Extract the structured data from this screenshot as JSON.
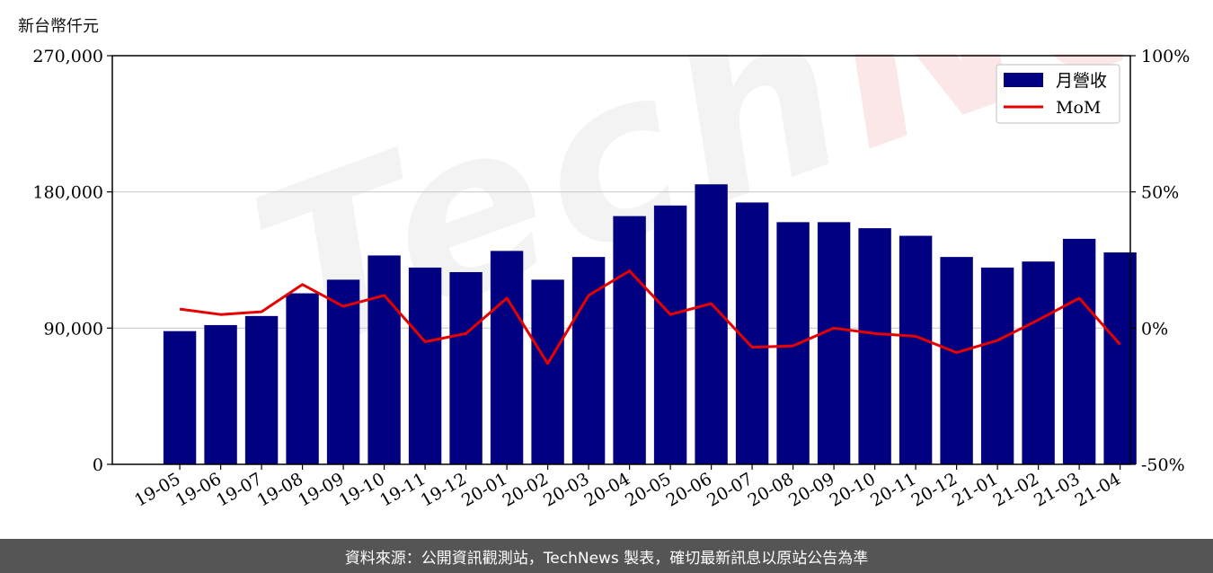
{
  "unit_label": "新台幣仟元",
  "footer_text": "資料來源：公開資訊觀測站，TechNews 製表，確切最新訊息以原站公告為準",
  "watermark": {
    "part1": "Tech",
    "part2": "News"
  },
  "chart_data": {
    "type": "bar",
    "categories": [
      "19-05",
      "19-06",
      "19-07",
      "19-08",
      "19-09",
      "19-10",
      "19-11",
      "19-12",
      "20-01",
      "20-02",
      "20-03",
      "20-04",
      "20-05",
      "20-06",
      "20-07",
      "20-08",
      "20-09",
      "20-10",
      "20-11",
      "20-12",
      "21-01",
      "21-02",
      "21-03",
      "21-04"
    ],
    "series": [
      {
        "name": "月營收",
        "type": "bar",
        "axis": "left",
        "color": "#000080",
        "values": [
          88000,
          92000,
          98000,
          113000,
          122000,
          138000,
          130000,
          127000,
          141000,
          122000,
          137000,
          164000,
          171000,
          185000,
          173000,
          160000,
          160000,
          156000,
          151000,
          137000,
          130000,
          134000,
          149000,
          140000
        ]
      },
      {
        "name": "MoM",
        "type": "line",
        "axis": "right",
        "color": "#e60000",
        "values": [
          7,
          5,
          6,
          16,
          8,
          12,
          -5,
          -2,
          11,
          -13,
          12,
          21,
          5,
          9,
          -7,
          -6.5,
          0,
          -2,
          -3,
          -9,
          -4.5,
          3,
          11,
          -6
        ]
      }
    ],
    "yleft": {
      "min": 0,
      "max": 270000,
      "ticks": [
        0,
        90000,
        180000,
        270000
      ],
      "tick_labels": [
        "0",
        "90,000",
        "180,000",
        "270,000"
      ]
    },
    "yright": {
      "min": -50,
      "max": 100,
      "ticks": [
        -50,
        0,
        50,
        100
      ],
      "tick_labels": [
        "-50%",
        "0%",
        "50%",
        "100%"
      ]
    },
    "grid": "horizontal",
    "legend": "top-right"
  }
}
